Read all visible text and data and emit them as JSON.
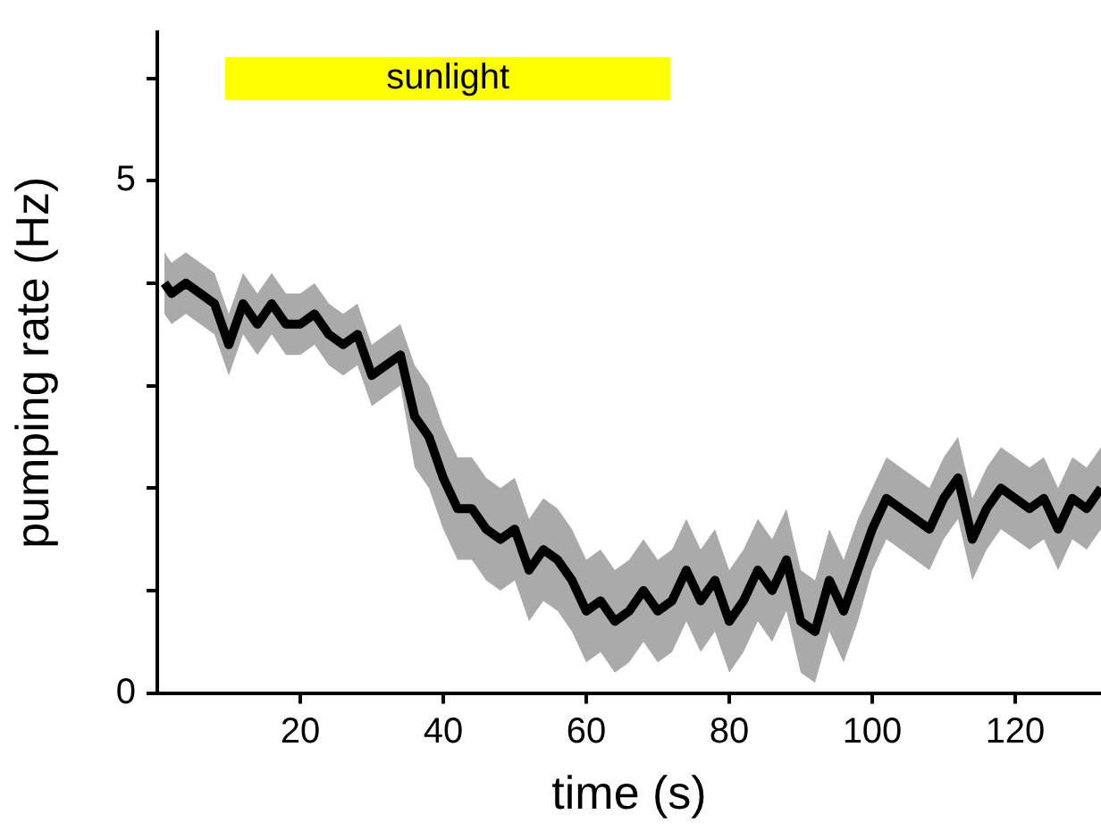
{
  "chart_data": {
    "type": "line",
    "xlabel": "time (s)",
    "ylabel": "pumping rate (Hz)",
    "x": [
      1,
      2,
      4,
      6,
      8,
      10,
      12,
      14,
      16,
      18,
      20,
      22,
      24,
      26,
      28,
      30,
      32,
      34,
      36,
      38,
      40,
      42,
      44,
      46,
      48,
      50,
      52,
      54,
      56,
      58,
      60,
      62,
      64,
      66,
      68,
      70,
      72,
      74,
      76,
      78,
      80,
      82,
      84,
      86,
      88,
      90,
      92,
      94,
      96,
      98,
      100,
      102,
      104,
      106,
      108,
      110,
      112,
      114,
      116,
      118,
      120,
      122,
      124,
      126,
      128,
      130,
      132
    ],
    "series": [
      {
        "color": "#000000",
        "values": [
          4.0,
          3.9,
          4.0,
          3.9,
          3.8,
          3.4,
          3.8,
          3.6,
          3.8,
          3.6,
          3.6,
          3.7,
          3.5,
          3.4,
          3.5,
          3.1,
          3.2,
          3.3,
          2.7,
          2.5,
          2.1,
          1.8,
          1.8,
          1.6,
          1.5,
          1.6,
          1.2,
          1.4,
          1.3,
          1.1,
          0.8,
          0.9,
          0.7,
          0.8,
          1.0,
          0.8,
          0.9,
          1.2,
          0.9,
          1.1,
          0.7,
          0.9,
          1.2,
          1.0,
          1.3,
          0.7,
          0.6,
          1.1,
          0.8,
          1.2,
          1.6,
          1.9,
          1.8,
          1.7,
          1.6,
          1.9,
          2.1,
          1.5,
          1.8,
          2.0,
          1.9,
          1.8,
          1.9,
          1.6,
          1.9,
          1.8,
          2.0
        ],
        "lower": [
          3.7,
          3.6,
          3.7,
          3.6,
          3.5,
          3.1,
          3.5,
          3.3,
          3.5,
          3.3,
          3.3,
          3.4,
          3.2,
          3.1,
          3.2,
          2.8,
          2.9,
          3.0,
          2.2,
          2.0,
          1.6,
          1.3,
          1.3,
          1.1,
          1.0,
          1.1,
          0.7,
          0.9,
          0.8,
          0.6,
          0.3,
          0.4,
          0.2,
          0.3,
          0.5,
          0.3,
          0.4,
          0.7,
          0.4,
          0.6,
          0.2,
          0.4,
          0.7,
          0.5,
          0.8,
          0.2,
          0.1,
          0.6,
          0.3,
          0.7,
          1.2,
          1.5,
          1.4,
          1.3,
          1.2,
          1.5,
          1.7,
          1.1,
          1.4,
          1.6,
          1.5,
          1.4,
          1.5,
          1.2,
          1.5,
          1.4,
          1.6
        ],
        "upper": [
          4.3,
          4.2,
          4.3,
          4.2,
          4.1,
          3.7,
          4.1,
          3.9,
          4.1,
          3.9,
          3.9,
          4.0,
          3.8,
          3.7,
          3.8,
          3.4,
          3.5,
          3.6,
          3.2,
          3.0,
          2.6,
          2.3,
          2.3,
          2.1,
          2.0,
          2.1,
          1.7,
          1.9,
          1.8,
          1.6,
          1.3,
          1.4,
          1.2,
          1.3,
          1.5,
          1.3,
          1.4,
          1.7,
          1.4,
          1.6,
          1.2,
          1.4,
          1.7,
          1.5,
          1.8,
          1.2,
          1.1,
          1.6,
          1.3,
          1.7,
          2.0,
          2.3,
          2.2,
          2.1,
          2.0,
          2.3,
          2.5,
          1.9,
          2.2,
          2.4,
          2.3,
          2.2,
          2.3,
          2.0,
          2.3,
          2.2,
          2.4
        ]
      }
    ],
    "xlim": [
      0,
      132
    ],
    "xticks": [
      20,
      40,
      60,
      80,
      100,
      120
    ],
    "ylim": [
      0,
      6.45
    ],
    "yticks": [
      0,
      {
        "value": 1,
        "label": null
      },
      {
        "value": 2,
        "label": null
      },
      {
        "value": 3,
        "label": null
      },
      {
        "value": 4,
        "label": null
      },
      5,
      {
        "value": 6,
        "label": null
      }
    ],
    "bands": [
      {
        "axis": "x",
        "from": 9.5,
        "to": 71.8,
        "label": "sunlight",
        "color": "#ffff00"
      }
    ],
    "grid": false,
    "legend": false,
    "marker": "none",
    "line_style": "solid"
  }
}
